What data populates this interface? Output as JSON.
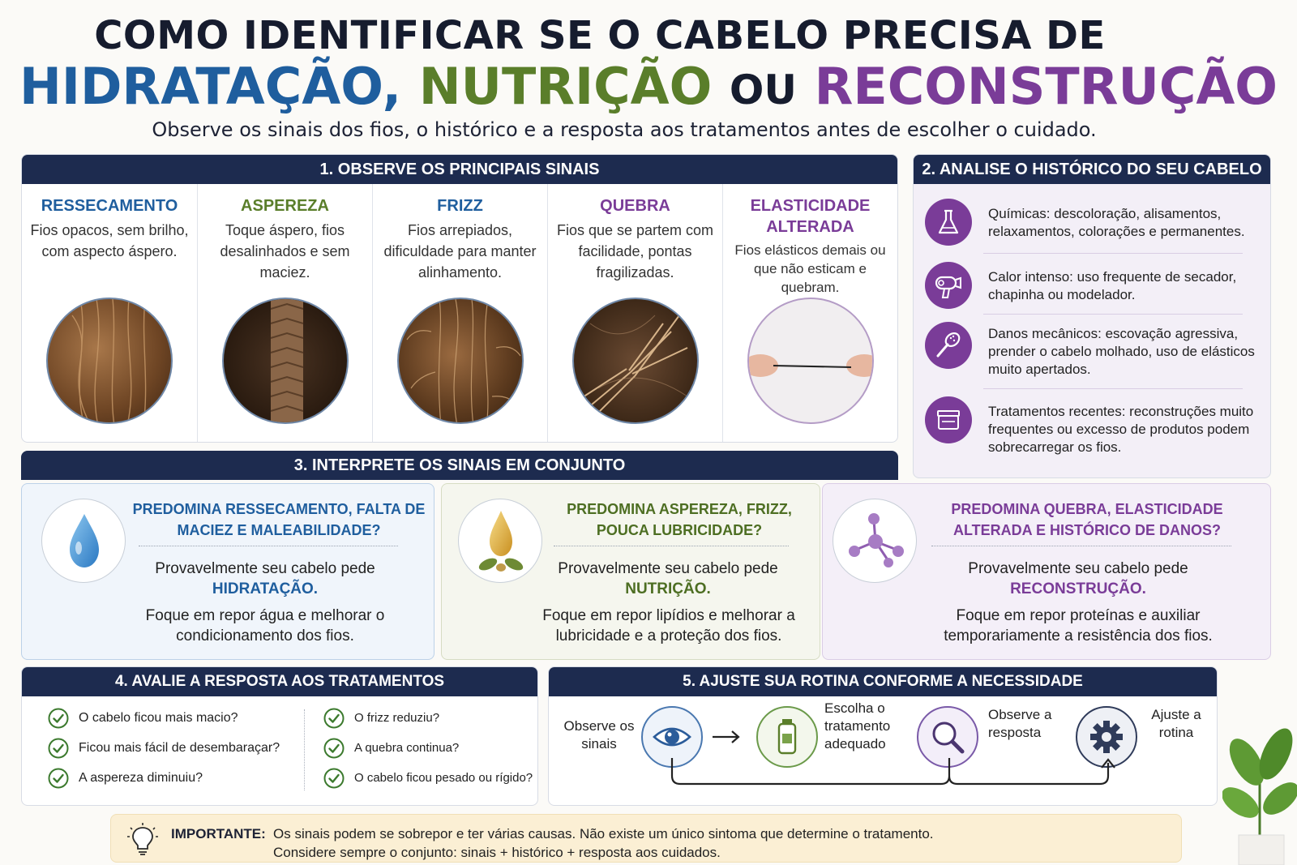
{
  "header": {
    "title_line1": "COMO IDENTIFICAR SE O CABELO PRECISA DE",
    "word_hidratacao": "HIDRATAÇÃO,",
    "word_nutricao": "NUTRIÇÃO",
    "word_ou": "OU",
    "word_reconstrucao": "RECONSTRUÇÃO",
    "subtitle": "Observe os sinais dos fios, o histórico e a resposta aos tratamentos antes de escolher o cuidado."
  },
  "colors": {
    "navy": "#1d2b4f",
    "blue": "#1f5e9e",
    "green": "#5a7e2a",
    "purple": "#7a3c98",
    "important_bg": "#fbefd4"
  },
  "section1": {
    "heading": "1. OBSERVE OS PRINCIPAIS SINAIS",
    "signs": [
      {
        "title": "RESSECAMENTO",
        "desc": "Fios opacos, sem brilho, com aspecto áspero.",
        "color": "#1f5e9e",
        "image": "dry-hair-closeup"
      },
      {
        "title": "ASPEREZA",
        "desc": "Toque áspero, fios desalinhados e sem maciez.",
        "color": "#5a7e2a",
        "image": "rough-cuticle-closeup"
      },
      {
        "title": "FRIZZ",
        "desc": "Fios arrepiados, dificuldade para manter alinhamento.",
        "color": "#1f5e9e",
        "image": "frizzy-hair-closeup"
      },
      {
        "title": "QUEBRA",
        "desc": "Fios que se partem com facilidade, pontas fragilizadas.",
        "color": "#7a3c98",
        "image": "broken-hair-closeup"
      },
      {
        "title": "ELASTICIDADE ALTERADA",
        "desc": "Fios elásticos demais ou que não esticam e quebram.",
        "color": "#7a3c98",
        "image": "stretched-strand"
      }
    ]
  },
  "section2": {
    "heading": "2. ANALISE O HISTÓRICO DO SEU CABELO",
    "items": [
      {
        "icon": "flask-icon",
        "text": "Químicas: descoloração, alisamentos, relaxamentos, colorações e permanentes."
      },
      {
        "icon": "hair-dryer-icon",
        "text": "Calor intenso: uso frequente de secador, chapinha ou modelador."
      },
      {
        "icon": "hairbrush-icon",
        "text": "Danos mecânicos: escovação agressiva, prender o cabelo molhado, uso de elásticos muito apertados."
      },
      {
        "icon": "product-jar-icon",
        "text": "Tratamentos recentes: reconstruções muito frequentes ou excesso de produtos podem sobrecarregar os fios."
      }
    ]
  },
  "section3": {
    "heading": "3. INTERPRETE OS SINAIS EM CONJUNTO",
    "hidratacao": {
      "question": "PREDOMINA RESSECAMENTO, FALTA DE MACIEZ E MALEABILIDADE?",
      "prefix": "Provavelmente seu cabelo pede",
      "result": "HIDRATAÇÃO.",
      "focus": "Foque em repor água e melhorar o condicionamento dos fios.",
      "icon": "water-drop-icon"
    },
    "nutricao": {
      "question": "PREDOMINA ASPEREZA, FRIZZ, POUCA LUBRICIDADE?",
      "prefix": "Provavelmente seu cabelo pede",
      "result": "NUTRIÇÃO.",
      "focus": "Foque em repor lipídios e melhorar a lubricidade e a proteção dos fios.",
      "icon": "oil-drop-icon"
    },
    "reconstrucao": {
      "question": "PREDOMINA QUEBRA, ELASTICIDADE ALTERADA E HISTÓRICO DE DANOS?",
      "prefix": "Provavelmente seu cabelo pede",
      "result": "RECONSTRUÇÃO.",
      "focus": "Foque em repor proteínas e auxiliar temporariamente a resistência dos fios.",
      "icon": "molecule-icon"
    }
  },
  "section4": {
    "heading": "4. AVALIE A RESPOSTA AOS TRATAMENTOS",
    "left": [
      "O cabelo ficou mais macio?",
      "Ficou mais fácil de desembaraçar?",
      "A aspereza diminuiu?"
    ],
    "right": [
      "O frizz reduziu?",
      "A quebra continua?",
      "O cabelo ficou pesado ou rígido?"
    ]
  },
  "section5": {
    "heading": "5. AJUSTE SUA ROTINA CONFORME A NECESSIDADE",
    "steps": [
      {
        "label": "Observe os sinais",
        "icon": "eye-icon"
      },
      {
        "label": "Escolha o tratamento adequado",
        "icon": "bottle-icon"
      },
      {
        "label": "Observe a resposta",
        "icon": "magnifier-icon"
      },
      {
        "label": "Ajuste a rotina",
        "icon": "gear-icon"
      }
    ]
  },
  "important": {
    "label": "IMPORTANTE:",
    "line1": "Os sinais podem se sobrepor e ter várias causas. Não existe um único sintoma que determine o tratamento.",
    "line2": "Considere sempre o conjunto: sinais + histórico + resposta aos cuidados."
  }
}
